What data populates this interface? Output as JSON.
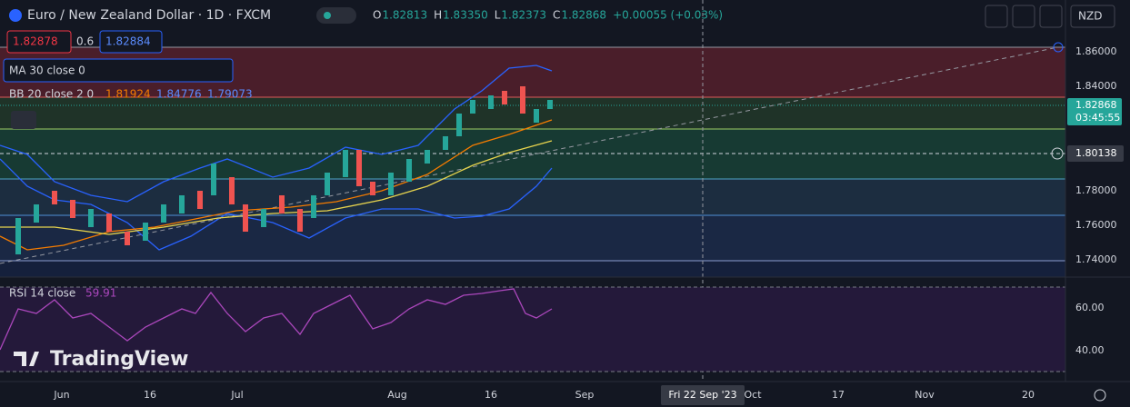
{
  "header": {
    "symbol": "Euro / New Zealand Dollar · 1D · FXCM",
    "ohlc": [
      {
        "key": "O",
        "value": "1.82813"
      },
      {
        "key": "H",
        "value": "1.83350"
      },
      {
        "key": "L",
        "value": "1.82373"
      },
      {
        "key": "C",
        "value": "1.82868"
      }
    ],
    "change": "+0.00055 (+0.03%)",
    "currency": "NZD"
  },
  "quote": {
    "sell": "1.82878",
    "spread": "0.6",
    "buy": "1.82884"
  },
  "indicators": {
    "ma": "MA 30 close 0",
    "bb": {
      "label": "BB 20 close 2 0",
      "basis": "1.81924",
      "upper": "1.84776",
      "lower": "1.79073"
    },
    "rsi": {
      "label": "RSI 14 close",
      "value": "59.91"
    }
  },
  "price_axis": {
    "ticks": [
      "1.86000",
      "1.84000",
      "1.78000",
      "1.76000",
      "1.74000"
    ],
    "last": "1.82868",
    "countdown": "03:45:55",
    "crosshair": "1.80138"
  },
  "rsi_axis": {
    "ticks": [
      "60.00",
      "40.00"
    ]
  },
  "time_axis": {
    "labels": [
      "Jun",
      "16",
      "Jul",
      "Aug",
      "16",
      "Sep",
      "Oct",
      "17",
      "Nov",
      "20"
    ],
    "crosshair": "Fri 22 Sep '23"
  },
  "watermark": "TradingView"
}
